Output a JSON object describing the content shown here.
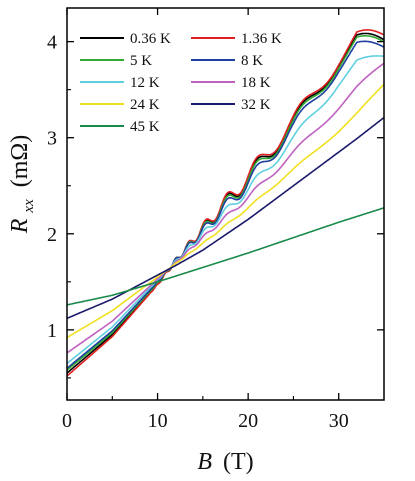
{
  "chart_data": {
    "type": "line",
    "title": "",
    "xlabel": {
      "symbol": "B",
      "unit": "(T)"
    },
    "ylabel": {
      "symbol": "R",
      "subscript": "xx",
      "unit": "(mΩ)"
    },
    "xlim": [
      0,
      35
    ],
    "ylim": [
      0.27,
      4.35
    ],
    "xticks": [
      0,
      10,
      20,
      30
    ],
    "yticks": [
      1,
      2,
      3,
      4
    ],
    "grid": false,
    "legend_position": "top-left, two columns",
    "series": [
      {
        "name": "0.36 K",
        "color": "#000000",
        "osc": 1.0,
        "x": [
          0,
          5,
          10,
          12,
          15,
          20,
          25,
          30,
          32,
          35
        ],
        "y": [
          0.55,
          0.95,
          1.48,
          1.72,
          2.05,
          2.58,
          3.15,
          3.8,
          4.02,
          3.97
        ]
      },
      {
        "name": "1.36 K",
        "color": "#e02020",
        "osc": 1.0,
        "x": [
          0,
          5,
          10,
          12,
          15,
          20,
          25,
          30,
          32,
          35
        ],
        "y": [
          0.52,
          0.93,
          1.47,
          1.72,
          2.06,
          2.6,
          3.17,
          3.82,
          4.05,
          4.02
        ]
      },
      {
        "name": "5 K",
        "color": "#33aa33",
        "osc": 0.95,
        "x": [
          0,
          5,
          10,
          12,
          15,
          20,
          25,
          30,
          32,
          35
        ],
        "y": [
          0.58,
          0.97,
          1.49,
          1.72,
          2.04,
          2.56,
          3.13,
          3.78,
          4.0,
          3.95
        ]
      },
      {
        "name": "8 K",
        "color": "#1f3f9f",
        "osc": 0.85,
        "x": [
          0,
          5,
          10,
          12,
          15,
          20,
          25,
          30,
          32,
          35
        ],
        "y": [
          0.6,
          0.99,
          1.5,
          1.72,
          2.03,
          2.53,
          3.1,
          3.74,
          3.95,
          3.9
        ]
      },
      {
        "name": "12 K",
        "color": "#5fcfe0",
        "osc": 0.55,
        "x": [
          0,
          5,
          10,
          12,
          15,
          20,
          25,
          30,
          32,
          35
        ],
        "y": [
          0.65,
          1.03,
          1.52,
          1.71,
          2.0,
          2.46,
          2.98,
          3.58,
          3.78,
          3.82
        ]
      },
      {
        "name": "18 K",
        "color": "#c060c0",
        "osc": 0.3,
        "x": [
          0,
          5,
          10,
          12,
          15,
          20,
          25,
          30,
          32,
          35
        ],
        "y": [
          0.76,
          1.09,
          1.53,
          1.7,
          1.96,
          2.38,
          2.84,
          3.32,
          3.52,
          3.76
        ]
      },
      {
        "name": "24 K",
        "color": "#f0e020",
        "osc": 0.12,
        "x": [
          0,
          5,
          10,
          12,
          15,
          20,
          25,
          30,
          32,
          35
        ],
        "y": [
          0.92,
          1.2,
          1.55,
          1.69,
          1.9,
          2.27,
          2.67,
          3.07,
          3.25,
          3.55
        ]
      },
      {
        "name": "32 K",
        "color": "#1a1a6a",
        "osc": 0.0,
        "x": [
          0,
          5,
          10,
          12,
          15,
          20,
          25,
          30,
          32,
          35
        ],
        "y": [
          1.12,
          1.32,
          1.57,
          1.67,
          1.83,
          2.15,
          2.5,
          2.85,
          2.99,
          3.21
        ]
      },
      {
        "name": "45 K",
        "color": "#1a8a4a",
        "osc": 0.0,
        "x": [
          0,
          5,
          10,
          12,
          15,
          20,
          25,
          30,
          32,
          35
        ],
        "y": [
          1.26,
          1.36,
          1.5,
          1.56,
          1.65,
          1.8,
          1.96,
          2.12,
          2.18,
          2.27
        ]
      }
    ],
    "legend_order": [
      "0.36 K",
      "1.36 K",
      "5 K",
      "8 K",
      "12 K",
      "18 K",
      "24 K",
      "32 K",
      "45 K"
    ]
  }
}
